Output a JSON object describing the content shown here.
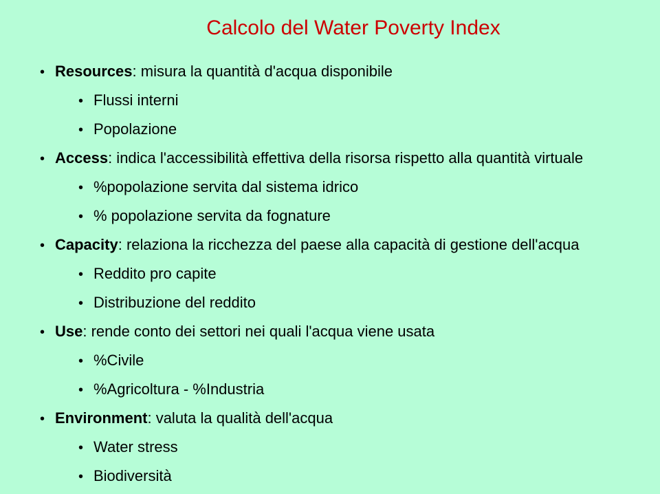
{
  "title": "Calcolo del Water Poverty Index",
  "bullets": {
    "resources": {
      "label": "Resources",
      "rest": ": misura la quantità d'acqua disponibile"
    },
    "resources_sub": [
      "Flussi interni",
      "Popolazione"
    ],
    "access": {
      "label": "Access",
      "rest": ": indica l'accessibilità effettiva della risorsa rispetto alla quantità virtuale"
    },
    "access_sub": [
      "%popolazione servita dal sistema idrico",
      "% popolazione servita da fognature"
    ],
    "capacity": {
      "label": "Capacity",
      "rest": ": relaziona la ricchezza del paese alla capacità di gestione dell'acqua"
    },
    "capacity_sub": [
      "Reddito pro capite",
      "Distribuzione del reddito"
    ],
    "use": {
      "label": "Use",
      "rest": ": rende conto dei settori nei quali l'acqua viene usata"
    },
    "use_sub": [
      "%Civile",
      "%Agricoltura - %Industria"
    ],
    "environment": {
      "label": "Environment",
      "rest": ": valuta la qualità dell'acqua"
    },
    "environment_sub": [
      "Water stress",
      "Biodiversità"
    ]
  }
}
